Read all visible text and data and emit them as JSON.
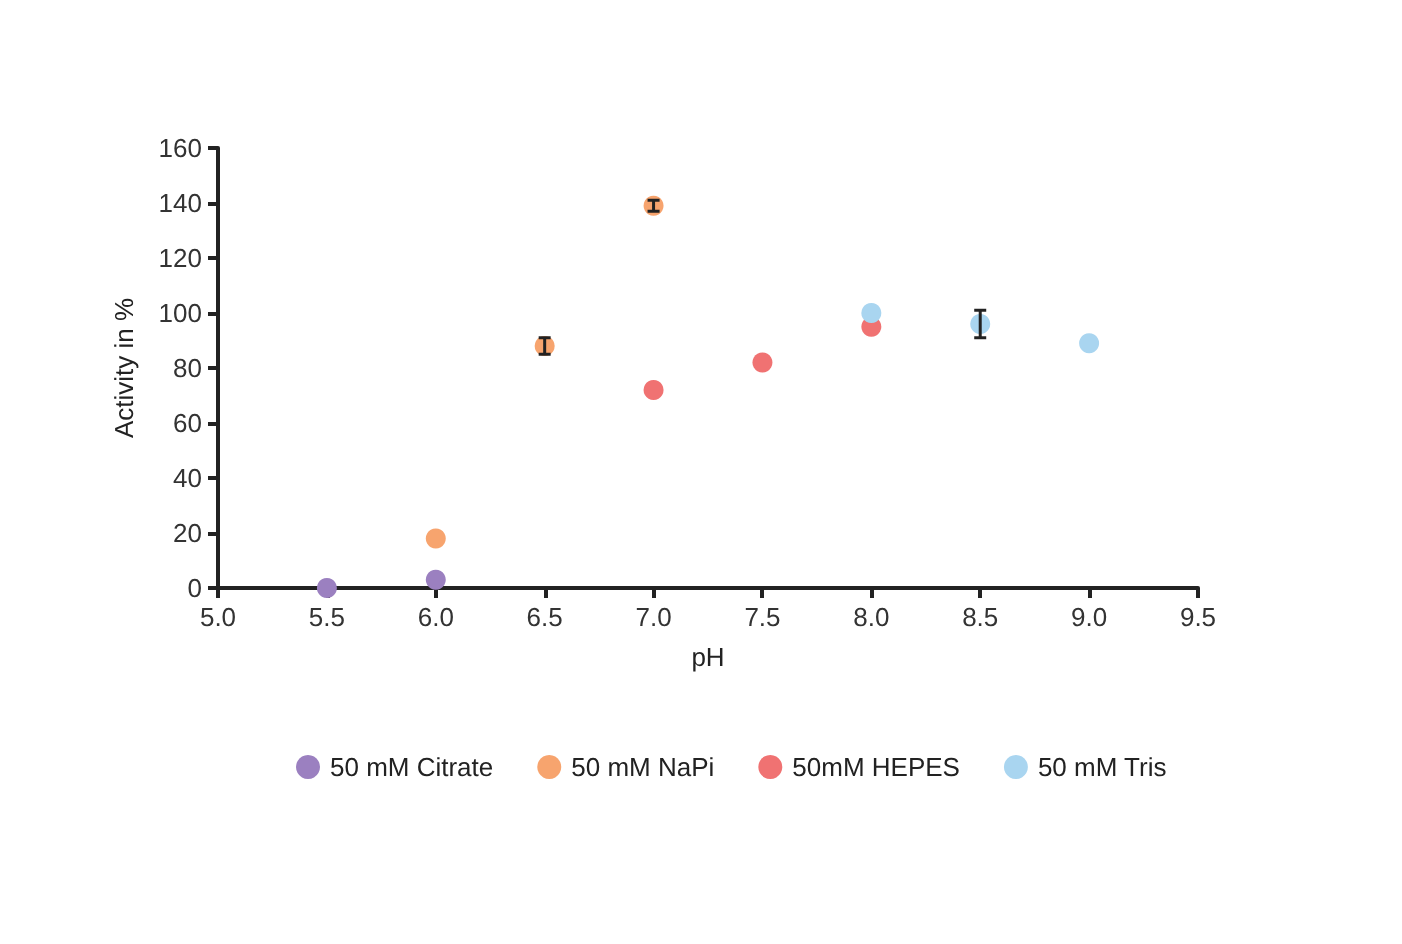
{
  "chart_data": {
    "type": "scatter",
    "xlabel": "pH",
    "ylabel": "Activity in %",
    "xlim": [
      5.0,
      9.5
    ],
    "xticks": [
      {
        "value": 5,
        "label": "5.0"
      },
      {
        "value": 5.5,
        "label": "5.5"
      },
      {
        "value": 6,
        "label": "6.0"
      },
      {
        "value": 6.5,
        "label": "6.5"
      },
      {
        "value": 7,
        "label": "7.0"
      },
      {
        "value": 7.5,
        "label": "7.5"
      },
      {
        "value": 8,
        "label": "8.0"
      },
      {
        "value": 8.5,
        "label": "8.5"
      },
      {
        "value": 9,
        "label": "9.0"
      },
      {
        "value": 9.5,
        "label": "9.5"
      }
    ],
    "ylim": [
      0,
      160
    ],
    "yticks": [
      0,
      20,
      40,
      60,
      80,
      100,
      120,
      140,
      160
    ],
    "grid": false,
    "legend": "bottom",
    "marker": "circle",
    "series": [
      {
        "name": "50 mM Citrate",
        "color": "#9b80c0",
        "x": [
          5.5,
          6.0
        ],
        "values": [
          0,
          3
        ],
        "errors": [
          null,
          null
        ]
      },
      {
        "name": "50 mM NaPi",
        "color": "#f7a46e",
        "x": [
          6.0,
          6.5,
          7.0
        ],
        "values": [
          18,
          88,
          139
        ],
        "errors": [
          null,
          3,
          2
        ]
      },
      {
        "name": "50mM HEPES",
        "color": "#f07272",
        "x": [
          7.0,
          7.5,
          8.0
        ],
        "values": [
          72,
          82,
          95
        ],
        "errors": [
          null,
          null,
          null
        ]
      },
      {
        "name": "50 mM Tris",
        "color": "#a9d5f0",
        "x": [
          8.0,
          8.5,
          9.0
        ],
        "values": [
          100,
          96,
          89
        ],
        "errors": [
          null,
          5,
          null
        ]
      }
    ]
  }
}
